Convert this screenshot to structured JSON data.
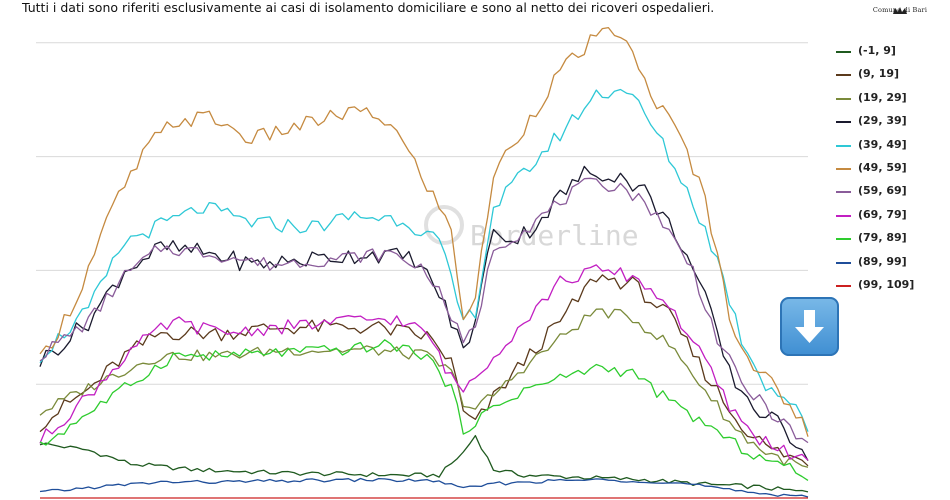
{
  "header": {
    "subtitle": "Tutti i dati sono riferiti esclusivamente ai casi di isolamento domiciliare e sono al netto dei ricoveri ospedalieri.",
    "logo_text": "Comune di Bari"
  },
  "watermark": {
    "text": "Borderline"
  },
  "scroll_button": {
    "icon": "down-arrow-icon",
    "color": "#4a95d6"
  },
  "chart_data": {
    "type": "line",
    "title": "",
    "xlabel": "",
    "ylabel": "",
    "grid": true,
    "legend_position": "right",
    "points": 128,
    "series": [
      {
        "name": "(-1, 9]",
        "color": "#1f5a1f",
        "keys": [
          [
            0,
            1.48
          ],
          [
            8,
            1.42
          ],
          [
            15,
            1.3
          ],
          [
            25,
            1.25
          ],
          [
            40,
            1.22
          ],
          [
            60,
            1.2
          ],
          [
            66,
            1.2
          ],
          [
            70,
            1.4
          ],
          [
            72,
            1.55
          ],
          [
            75,
            1.25
          ],
          [
            80,
            1.2
          ],
          [
            90,
            1.18
          ],
          [
            100,
            1.16
          ],
          [
            110,
            1.12
          ],
          [
            118,
            1.1
          ],
          [
            127,
            1.05
          ]
        ],
        "amp": 0.02
      },
      {
        "name": "(9, 19]",
        "color": "#5b3a1c",
        "keys": [
          [
            0,
            1.65
          ],
          [
            8,
            1.95
          ],
          [
            14,
            2.25
          ],
          [
            20,
            2.45
          ],
          [
            30,
            2.45
          ],
          [
            40,
            2.5
          ],
          [
            55,
            2.5
          ],
          [
            64,
            2.42
          ],
          [
            68,
            2.2
          ],
          [
            70,
            1.75
          ],
          [
            72,
            1.65
          ],
          [
            76,
            1.95
          ],
          [
            80,
            2.2
          ],
          [
            86,
            2.55
          ],
          [
            92,
            2.95
          ],
          [
            98,
            2.88
          ],
          [
            104,
            2.6
          ],
          [
            110,
            2.1
          ],
          [
            115,
            1.7
          ],
          [
            120,
            1.45
          ],
          [
            127,
            1.3
          ]
        ],
        "amp": 0.07
      },
      {
        "name": "(19, 29]",
        "color": "#7a8a3a",
        "keys": [
          [
            0,
            1.75
          ],
          [
            8,
            1.97
          ],
          [
            15,
            2.15
          ],
          [
            20,
            2.25
          ],
          [
            30,
            2.25
          ],
          [
            40,
            2.3
          ],
          [
            55,
            2.3
          ],
          [
            64,
            2.25
          ],
          [
            68,
            2.1
          ],
          [
            70,
            1.85
          ],
          [
            72,
            1.78
          ],
          [
            76,
            1.95
          ],
          [
            80,
            2.15
          ],
          [
            86,
            2.4
          ],
          [
            92,
            2.65
          ],
          [
            98,
            2.58
          ],
          [
            104,
            2.35
          ],
          [
            110,
            1.95
          ],
          [
            115,
            1.6
          ],
          [
            120,
            1.4
          ],
          [
            127,
            1.25
          ]
        ],
        "amp": 0.05
      },
      {
        "name": "(29, 39]",
        "color": "#1a1a2e",
        "keys": [
          [
            0,
            2.2
          ],
          [
            8,
            2.55
          ],
          [
            14,
            3.0
          ],
          [
            20,
            3.2
          ],
          [
            28,
            3.15
          ],
          [
            35,
            3.05
          ],
          [
            45,
            3.1
          ],
          [
            55,
            3.15
          ],
          [
            62,
            3.1
          ],
          [
            66,
            2.8
          ],
          [
            70,
            2.3
          ],
          [
            72,
            2.55
          ],
          [
            75,
            3.4
          ],
          [
            78,
            3.25
          ],
          [
            82,
            3.4
          ],
          [
            86,
            3.65
          ],
          [
            90,
            3.85
          ],
          [
            95,
            3.85
          ],
          [
            100,
            3.7
          ],
          [
            106,
            3.25
          ],
          [
            110,
            2.75
          ],
          [
            114,
            2.1
          ],
          [
            118,
            1.8
          ],
          [
            122,
            1.65
          ],
          [
            127,
            1.4
          ]
        ],
        "amp": 0.08
      },
      {
        "name": "(39, 49]",
        "color": "#2ec8d6",
        "keys": [
          [
            0,
            2.25
          ],
          [
            8,
            2.65
          ],
          [
            14,
            3.25
          ],
          [
            20,
            3.4
          ],
          [
            27,
            3.55
          ],
          [
            35,
            3.42
          ],
          [
            45,
            3.38
          ],
          [
            52,
            3.48
          ],
          [
            60,
            3.45
          ],
          [
            66,
            3.25
          ],
          [
            70,
            2.55
          ],
          [
            72,
            2.65
          ],
          [
            75,
            3.55
          ],
          [
            80,
            3.85
          ],
          [
            86,
            4.2
          ],
          [
            92,
            4.55
          ],
          [
            97,
            4.6
          ],
          [
            102,
            4.2
          ],
          [
            108,
            3.6
          ],
          [
            112,
            3.1
          ],
          [
            116,
            2.4
          ],
          [
            120,
            2.0
          ],
          [
            124,
            1.85
          ],
          [
            127,
            1.6
          ]
        ],
        "amp": 0.07
      },
      {
        "name": "(49, 59]",
        "color": "#c58a40",
        "keys": [
          [
            0,
            2.2
          ],
          [
            6,
            2.75
          ],
          [
            12,
            3.55
          ],
          [
            18,
            4.1
          ],
          [
            22,
            4.3
          ],
          [
            28,
            4.35
          ],
          [
            35,
            4.15
          ],
          [
            45,
            4.3
          ],
          [
            52,
            4.4
          ],
          [
            58,
            4.3
          ],
          [
            64,
            3.75
          ],
          [
            68,
            3.35
          ],
          [
            70,
            2.6
          ],
          [
            72,
            2.75
          ],
          [
            75,
            3.85
          ],
          [
            80,
            4.25
          ],
          [
            86,
            4.75
          ],
          [
            92,
            5.05
          ],
          [
            96,
            5.1
          ],
          [
            100,
            4.65
          ],
          [
            106,
            4.15
          ],
          [
            110,
            3.65
          ],
          [
            114,
            2.6
          ],
          [
            118,
            2.15
          ],
          [
            122,
            1.95
          ],
          [
            127,
            1.6
          ]
        ],
        "amp": 0.07
      },
      {
        "name": "(59, 69]",
        "color": "#8a5c9a",
        "keys": [
          [
            0,
            2.25
          ],
          [
            8,
            2.55
          ],
          [
            14,
            2.95
          ],
          [
            20,
            3.2
          ],
          [
            28,
            3.15
          ],
          [
            38,
            3.05
          ],
          [
            48,
            3.1
          ],
          [
            58,
            3.15
          ],
          [
            64,
            3.0
          ],
          [
            68,
            2.6
          ],
          [
            70,
            2.35
          ],
          [
            72,
            2.5
          ],
          [
            75,
            3.2
          ],
          [
            80,
            3.35
          ],
          [
            86,
            3.6
          ],
          [
            90,
            3.75
          ],
          [
            96,
            3.75
          ],
          [
            102,
            3.5
          ],
          [
            108,
            3.0
          ],
          [
            112,
            2.4
          ],
          [
            116,
            2.0
          ],
          [
            120,
            1.8
          ],
          [
            127,
            1.45
          ]
        ],
        "amp": 0.06
      },
      {
        "name": "(69, 79]",
        "color": "#c21fc2",
        "keys": [
          [
            0,
            1.5
          ],
          [
            8,
            1.9
          ],
          [
            15,
            2.3
          ],
          [
            22,
            2.55
          ],
          [
            30,
            2.45
          ],
          [
            40,
            2.5
          ],
          [
            50,
            2.55
          ],
          [
            58,
            2.58
          ],
          [
            64,
            2.45
          ],
          [
            68,
            2.05
          ],
          [
            70,
            1.95
          ],
          [
            74,
            2.2
          ],
          [
            80,
            2.55
          ],
          [
            86,
            2.9
          ],
          [
            92,
            3.0
          ],
          [
            98,
            2.95
          ],
          [
            104,
            2.7
          ],
          [
            110,
            2.2
          ],
          [
            114,
            1.8
          ],
          [
            118,
            1.55
          ],
          [
            122,
            1.45
          ],
          [
            127,
            1.3
          ]
        ],
        "amp": 0.06
      },
      {
        "name": "(79, 89]",
        "color": "#2ecc2e",
        "keys": [
          [
            0,
            1.45
          ],
          [
            8,
            1.75
          ],
          [
            15,
            2.0
          ],
          [
            22,
            2.25
          ],
          [
            30,
            2.25
          ],
          [
            40,
            2.28
          ],
          [
            50,
            2.3
          ],
          [
            58,
            2.35
          ],
          [
            64,
            2.25
          ],
          [
            68,
            1.95
          ],
          [
            70,
            1.6
          ],
          [
            74,
            1.75
          ],
          [
            80,
            1.95
          ],
          [
            86,
            2.05
          ],
          [
            92,
            2.15
          ],
          [
            98,
            2.1
          ],
          [
            104,
            1.85
          ],
          [
            110,
            1.65
          ],
          [
            114,
            1.5
          ],
          [
            118,
            1.38
          ],
          [
            122,
            1.3
          ],
          [
            127,
            1.2
          ]
        ],
        "amp": 0.05
      },
      {
        "name": "(89, 99]",
        "color": "#1f4e9a",
        "keys": [
          [
            0,
            1.05
          ],
          [
            10,
            1.1
          ],
          [
            20,
            1.14
          ],
          [
            30,
            1.14
          ],
          [
            40,
            1.15
          ],
          [
            55,
            1.16
          ],
          [
            66,
            1.15
          ],
          [
            70,
            1.08
          ],
          [
            74,
            1.12
          ],
          [
            80,
            1.14
          ],
          [
            90,
            1.16
          ],
          [
            100,
            1.15
          ],
          [
            108,
            1.12
          ],
          [
            115,
            1.06
          ],
          [
            122,
            1.03
          ],
          [
            127,
            1.02
          ]
        ],
        "amp": 0.015
      },
      {
        "name": "(99, 109]",
        "color": "#cc2020",
        "keys": [
          [
            0,
            1.0
          ],
          [
            127,
            1.0
          ]
        ],
        "amp": 0
      }
    ],
    "ylim": [
      1.0,
      5.2
    ]
  }
}
